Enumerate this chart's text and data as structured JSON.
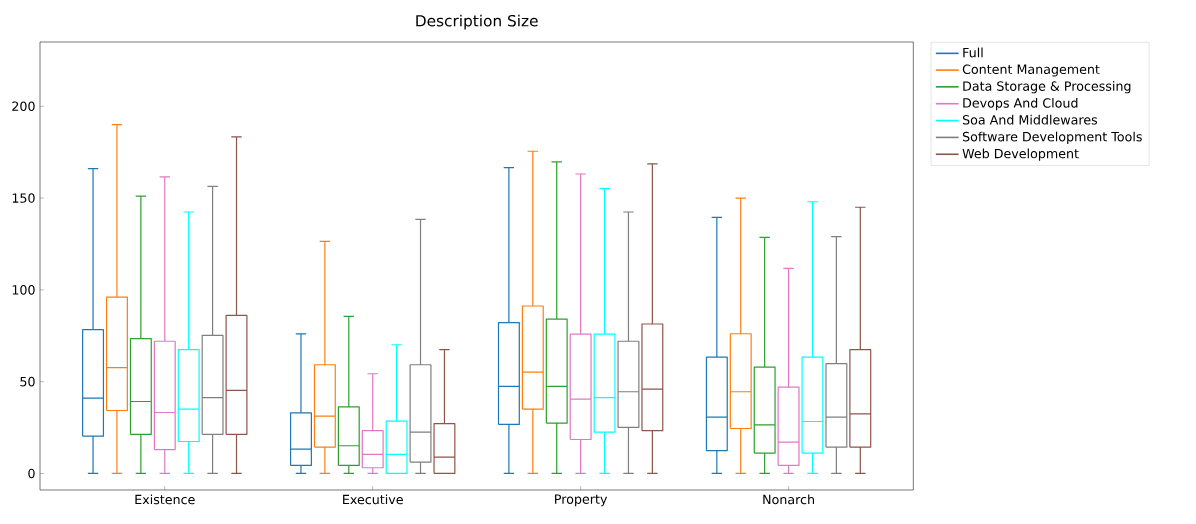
{
  "chart_data": {
    "type": "box",
    "title": "Description Size",
    "categories": [
      "Existence",
      "Executive",
      "Property",
      "Nonarch"
    ],
    "ylim": [
      -9,
      235
    ],
    "yticks": [
      0,
      50,
      100,
      150,
      200
    ],
    "legend": "right",
    "series": [
      {
        "name": "Full",
        "color": "#1f77b4",
        "boxes": [
          {
            "low": 0,
            "q1": 20.3,
            "median": 41,
            "q3": 78.3,
            "high": 166
          },
          {
            "low": 0,
            "q1": 4.4,
            "median": 13.3,
            "q3": 33,
            "high": 76
          },
          {
            "low": 0,
            "q1": 26.7,
            "median": 47.4,
            "q3": 82.1,
            "high": 166.6
          },
          {
            "low": 0,
            "q1": 12.4,
            "median": 30.7,
            "q3": 63.4,
            "high": 139.5
          }
        ]
      },
      {
        "name": "Content Management",
        "color": "#ff7f0e",
        "boxes": [
          {
            "low": 0,
            "q1": 34.3,
            "median": 57.6,
            "q3": 96,
            "high": 190
          },
          {
            "low": 0,
            "q1": 14.3,
            "median": 31.2,
            "q3": 59.2,
            "high": 126.4
          },
          {
            "low": 0,
            "q1": 35,
            "median": 55.2,
            "q3": 91.2,
            "high": 175.5
          },
          {
            "low": 0,
            "q1": 24.5,
            "median": 44.5,
            "q3": 76.1,
            "high": 150
          }
        ]
      },
      {
        "name": "Data Storage & Processing",
        "color": "#2ca02c",
        "boxes": [
          {
            "low": 0,
            "q1": 21.3,
            "median": 39.2,
            "q3": 73.4,
            "high": 151
          },
          {
            "low": 0,
            "q1": 4.4,
            "median": 15.1,
            "q3": 36.3,
            "high": 85.6
          },
          {
            "low": 0,
            "q1": 27.4,
            "median": 47.4,
            "q3": 84.1,
            "high": 169.7
          },
          {
            "low": 0,
            "q1": 11.1,
            "median": 26.5,
            "q3": 57.9,
            "high": 128.6
          }
        ]
      },
      {
        "name": "Devops And Cloud",
        "color": "#e377c2",
        "boxes": [
          {
            "low": 0,
            "q1": 13,
            "median": 33.2,
            "q3": 72,
            "high": 161.5
          },
          {
            "low": 0,
            "q1": 3.1,
            "median": 10.4,
            "q3": 23.3,
            "high": 54.3
          },
          {
            "low": 0,
            "q1": 18.5,
            "median": 40.5,
            "q3": 75.9,
            "high": 163.1
          },
          {
            "low": 0,
            "q1": 4.4,
            "median": 17.1,
            "q3": 47,
            "high": 111.7
          }
        ]
      },
      {
        "name": "Soa And Middlewares",
        "color": "#00ffff",
        "boxes": [
          {
            "low": 0,
            "q1": 17.4,
            "median": 35,
            "q3": 67.4,
            "high": 142.4
          },
          {
            "low": 0,
            "q1": 0,
            "median": 10.4,
            "q3": 28.5,
            "high": 70.1
          },
          {
            "low": 0,
            "q1": 22.5,
            "median": 41.3,
            "q3": 75.9,
            "high": 155.1
          },
          {
            "low": 0,
            "q1": 11.1,
            "median": 28.3,
            "q3": 63.4,
            "high": 148
          }
        ]
      },
      {
        "name": "Software Development Tools",
        "color": "#7f7f7f",
        "boxes": [
          {
            "low": 0,
            "q1": 21.3,
            "median": 41.3,
            "q3": 75.2,
            "high": 156.4
          },
          {
            "low": 0,
            "q1": 6.2,
            "median": 22.5,
            "q3": 59.2,
            "high": 138.4
          },
          {
            "low": 0,
            "q1": 25.1,
            "median": 44.5,
            "q3": 72,
            "high": 142.4
          },
          {
            "low": 0,
            "q1": 14.3,
            "median": 30.7,
            "q3": 59.8,
            "high": 129
          }
        ]
      },
      {
        "name": "Web Development",
        "color": "#8c564b",
        "boxes": [
          {
            "low": 0,
            "q1": 21.3,
            "median": 45.2,
            "q3": 86.1,
            "high": 183.3
          },
          {
            "low": 0,
            "q1": 0,
            "median": 8.9,
            "q3": 27.1,
            "high": 67.4
          },
          {
            "low": 0,
            "q1": 23.3,
            "median": 45.9,
            "q3": 81.4,
            "high": 168.6
          },
          {
            "low": 0,
            "q1": 14.3,
            "median": 32.5,
            "q3": 67.4,
            "high": 145
          }
        ]
      }
    ]
  }
}
